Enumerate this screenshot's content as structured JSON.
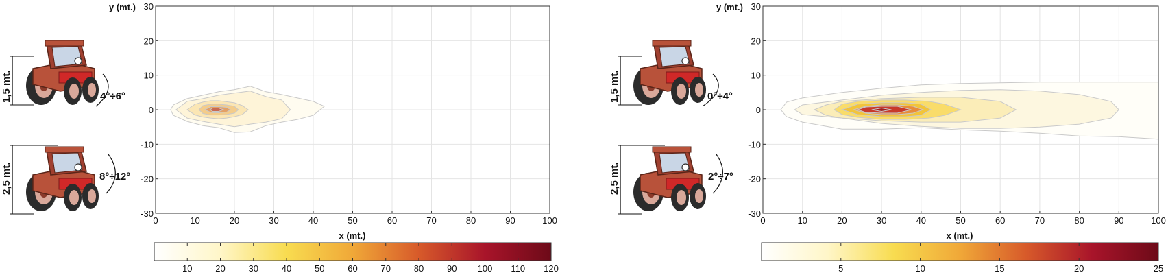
{
  "chart_data": [
    {
      "type": "contour",
      "xlabel": "x (mt.)",
      "ylabel": "y (mt.)",
      "xlim": [
        0,
        100
      ],
      "ylim": [
        -30,
        30
      ],
      "x_ticks": [
        "0",
        "10",
        "20",
        "30",
        "40",
        "50",
        "60",
        "70",
        "80",
        "90",
        "100"
      ],
      "y_ticks": [
        "30",
        "20",
        "10",
        "0",
        "-10",
        "-20",
        "-30"
      ],
      "grid": true,
      "contour_levels": [
        {
          "level": 5,
          "color": "#fffcf0",
          "x": [
            3.8,
            4.5,
            8,
            12,
            16,
            20,
            24,
            28,
            32,
            36,
            40,
            42.8,
            40,
            36,
            32,
            28,
            24,
            20,
            16,
            12,
            8,
            4.5
          ],
          "y": [
            0,
            1.4,
            3.2,
            4.2,
            5.2,
            5.8,
            6.8,
            5.2,
            4.4,
            3.4,
            2.4,
            1,
            -1.6,
            -2.8,
            -3.6,
            -4.6,
            -6.4,
            -6.6,
            -5.2,
            -4.6,
            -3.4,
            -1.6
          ]
        },
        {
          "level": 15,
          "color": "#fef4d8",
          "x": [
            5.2,
            8,
            12,
            16,
            20,
            24,
            28,
            32,
            34.2,
            32,
            28,
            24,
            20,
            16,
            12,
            8
          ],
          "y": [
            0,
            2.4,
            3.2,
            4.2,
            4.8,
            5.4,
            3.8,
            2.8,
            0,
            -2.6,
            -3.6,
            -4.2,
            -4.9,
            -4.2,
            -3.4,
            -2.4
          ]
        },
        {
          "level": 30,
          "color": "#fbe6b4",
          "x": [
            8,
            10,
            12,
            14,
            16,
            18,
            20,
            22,
            23.5,
            22,
            20,
            18,
            16,
            14,
            12,
            10
          ],
          "y": [
            0,
            1.6,
            2.2,
            2.6,
            2.6,
            2.3,
            2,
            1.2,
            0,
            -1.4,
            -2,
            -2.4,
            -2.6,
            -2.4,
            -2.1,
            -1.5
          ]
        },
        {
          "level": 50,
          "color": "#f4cc8a",
          "x": [
            11,
            12,
            14,
            16,
            18,
            20,
            21,
            20,
            18,
            16,
            14,
            12
          ],
          "y": [
            0,
            1.2,
            1.6,
            1.6,
            1.4,
            1,
            0,
            -1,
            -1.4,
            -1.5,
            -1.5,
            -1.1
          ]
        },
        {
          "level": 75,
          "color": "#e3a066",
          "x": [
            12.5,
            14,
            16,
            18,
            19,
            18,
            16,
            14
          ],
          "y": [
            0,
            0.9,
            0.9,
            0.7,
            0,
            -0.7,
            -0.9,
            -0.8
          ]
        },
        {
          "level": 100,
          "color": "#c96a52",
          "x": [
            13.8,
            14.5,
            16,
            17.2,
            16,
            14.5
          ],
          "y": [
            0,
            0.5,
            0.5,
            0,
            -0.5,
            -0.5
          ]
        }
      ],
      "colorbar": {
        "min": 0,
        "max": 120,
        "ticks": [
          "10",
          "20",
          "30",
          "40",
          "50",
          "60",
          "70",
          "80",
          "90",
          "100",
          "110",
          "120"
        ],
        "ticks_values": [
          10,
          20,
          30,
          40,
          50,
          60,
          70,
          80,
          90,
          100,
          110,
          120
        ]
      },
      "annotations": {
        "tractor_top": {
          "height": "1,5 mt.",
          "angle": "4°÷6°"
        },
        "tractor_bottom": {
          "height": "2,5 mt.",
          "angle": "8°÷12°"
        }
      }
    },
    {
      "type": "contour",
      "xlabel": "x (mt.)",
      "ylabel": "y (mt.)",
      "xlim": [
        0,
        100
      ],
      "ylim": [
        -30,
        30
      ],
      "x_ticks": [
        "0",
        "10",
        "20",
        "30",
        "40",
        "50",
        "60",
        "70",
        "80",
        "90",
        "100"
      ],
      "y_ticks": [
        "30",
        "20",
        "10",
        "0",
        "-10",
        "-20",
        "-30"
      ],
      "grid": true,
      "contour_levels": [
        {
          "level": 1,
          "color": "#fffef8",
          "x": [
            4.5,
            6,
            10,
            20,
            30,
            40,
            50,
            60,
            70,
            80,
            90,
            100,
            100,
            90,
            80,
            70,
            60,
            50,
            40,
            30,
            20,
            10,
            6
          ],
          "y": [
            0,
            2.2,
            3.4,
            5,
            6.2,
            7.2,
            7.6,
            7.8,
            8,
            8,
            8,
            8,
            -8.5,
            -7.8,
            -7.6,
            -6.8,
            -6.2,
            -5.8,
            -5.2,
            -5.6,
            -5.6,
            -3.6,
            -2
          ]
        },
        {
          "level": 3,
          "color": "#fdf7e0",
          "x": [
            8,
            10,
            20,
            30,
            40,
            50,
            60,
            70,
            80,
            88,
            90,
            88,
            80,
            70,
            60,
            50,
            40,
            30,
            20,
            10
          ],
          "y": [
            0,
            1.4,
            2.8,
            4.2,
            5,
            5.6,
            5.8,
            5.4,
            4.4,
            2.4,
            0,
            -2.4,
            -4.2,
            -5,
            -5.4,
            -5.4,
            -4.8,
            -4,
            -2.4,
            -1.4
          ]
        },
        {
          "level": 6,
          "color": "#fbedb8",
          "x": [
            13,
            16,
            20,
            30,
            40,
            50,
            60,
            64,
            60,
            50,
            40,
            30,
            20,
            16
          ],
          "y": [
            0,
            1.4,
            2.4,
            3.2,
            3.6,
            3.6,
            2.4,
            0,
            -2.4,
            -3.6,
            -3.6,
            -3.2,
            -2.4,
            -1.6
          ]
        },
        {
          "level": 10,
          "color": "#f9dc6a",
          "x": [
            18,
            20,
            24,
            30,
            36,
            42,
            46,
            50,
            46,
            42,
            36,
            30,
            24,
            20
          ],
          "y": [
            0,
            1.6,
            2.4,
            2.8,
            2.8,
            2.4,
            1.6,
            0,
            -1.6,
            -2.4,
            -2.8,
            -2.8,
            -2.2,
            -1.4
          ]
        },
        {
          "level": 14,
          "color": "#f2c43a",
          "x": [
            20,
            24,
            30,
            36,
            40,
            42.5,
            40,
            36,
            30,
            24
          ],
          "y": [
            0,
            1.6,
            2,
            2,
            1.6,
            0,
            -1.6,
            -2,
            -2,
            -1.4
          ]
        },
        {
          "level": 18,
          "color": "#e88c3a",
          "x": [
            23,
            26,
            30,
            34,
            38,
            40.5,
            38,
            34,
            30,
            26
          ],
          "y": [
            0,
            1,
            1.4,
            1.4,
            1,
            0,
            -1,
            -1.4,
            -1.4,
            -1
          ]
        },
        {
          "level": 22,
          "color": "#c83a2a",
          "x": [
            24,
            26,
            30,
            34,
            37.5,
            34,
            30,
            26
          ],
          "y": [
            0,
            0.8,
            1,
            1,
            0,
            -1,
            -1,
            -0.8
          ]
        },
        {
          "level": 25,
          "color": "#a11e1e",
          "x": [
            27.5,
            30,
            32.5,
            30
          ],
          "y": [
            0,
            0.5,
            0,
            -0.5
          ]
        }
      ],
      "colorbar": {
        "min": 0,
        "max": 25,
        "ticks": [
          "5",
          "10",
          "15",
          "20",
          "25"
        ],
        "ticks_values": [
          5,
          10,
          15,
          20,
          25
        ]
      },
      "annotations": {
        "tractor_top": {
          "height": "1,5 mt.",
          "angle": "0°÷4°"
        },
        "tractor_bottom": {
          "height": "2,5 mt.",
          "angle": "2°÷7°"
        }
      }
    }
  ],
  "colors": {
    "grid": "#e4e4e4",
    "contour_line": "#c9c9c9",
    "tractor_body": "#b8523a",
    "tractor_cab": "#c9d6e6",
    "tractor_tyre": "#2b2b2b",
    "colorbar_stops": [
      "#ffffff",
      "#fff6c8",
      "#f8dc50",
      "#f0a838",
      "#d75a2a",
      "#a8142a",
      "#6d0a18"
    ]
  }
}
